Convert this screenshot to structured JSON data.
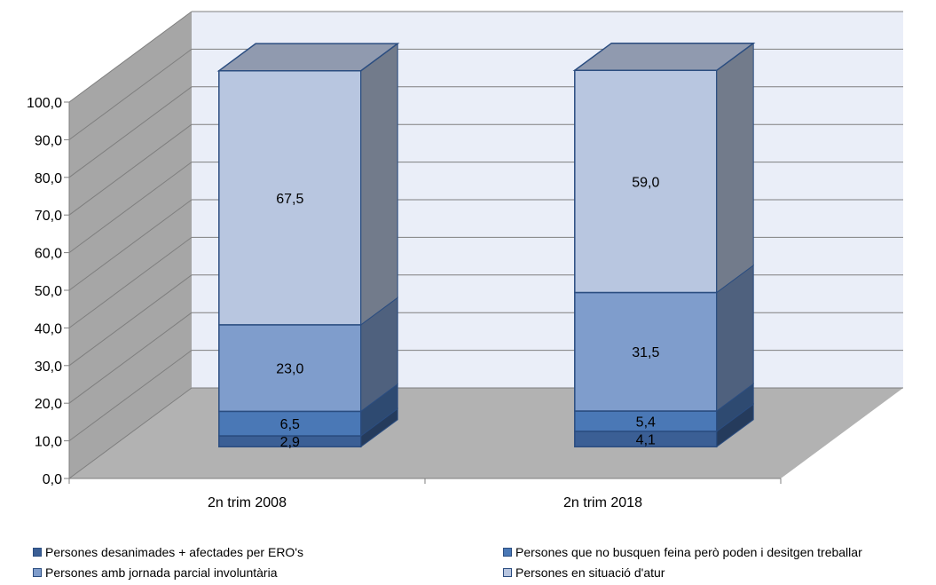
{
  "chart_data": {
    "type": "bar",
    "stacked": true,
    "three_d": true,
    "categories": [
      "2n trim 2008",
      "2n trim 2018"
    ],
    "series": [
      {
        "name": "Persones desanimades + afectades per ERO's",
        "values": [
          2.9,
          4.1
        ],
        "color": "#3b5f95",
        "label_values": [
          "2,9",
          "4,1"
        ]
      },
      {
        "name": "Persones que no busquen feina però poden i desitgen treballar",
        "values": [
          6.5,
          5.4
        ],
        "color": "#4a78b6",
        "label_values": [
          "6,5",
          "5,4"
        ]
      },
      {
        "name": "Persones amb jornada parcial involuntària",
        "values": [
          23.0,
          31.5
        ],
        "color": "#7f9dcc",
        "label_values": [
          "23,0",
          "31,5"
        ]
      },
      {
        "name": "Persones en situació d'atur",
        "values": [
          67.5,
          59.0
        ],
        "color": "#b8c6e0",
        "label_values": [
          "67,5",
          "59,0"
        ]
      }
    ],
    "ylim": [
      0,
      100
    ],
    "yticks": [
      "0,0",
      "10,0",
      "20,0",
      "30,0",
      "40,0",
      "50,0",
      "60,0",
      "70,0",
      "80,0",
      "90,0",
      "100,0"
    ],
    "grid": true,
    "legend_position": "bottom",
    "title": "",
    "xlabel": "",
    "ylabel": "",
    "colors": {
      "wall": "#eaeef8",
      "side_wall": "#a6a6a6",
      "floor": "#b2b2b2",
      "grid": "#7f7f7f"
    }
  }
}
